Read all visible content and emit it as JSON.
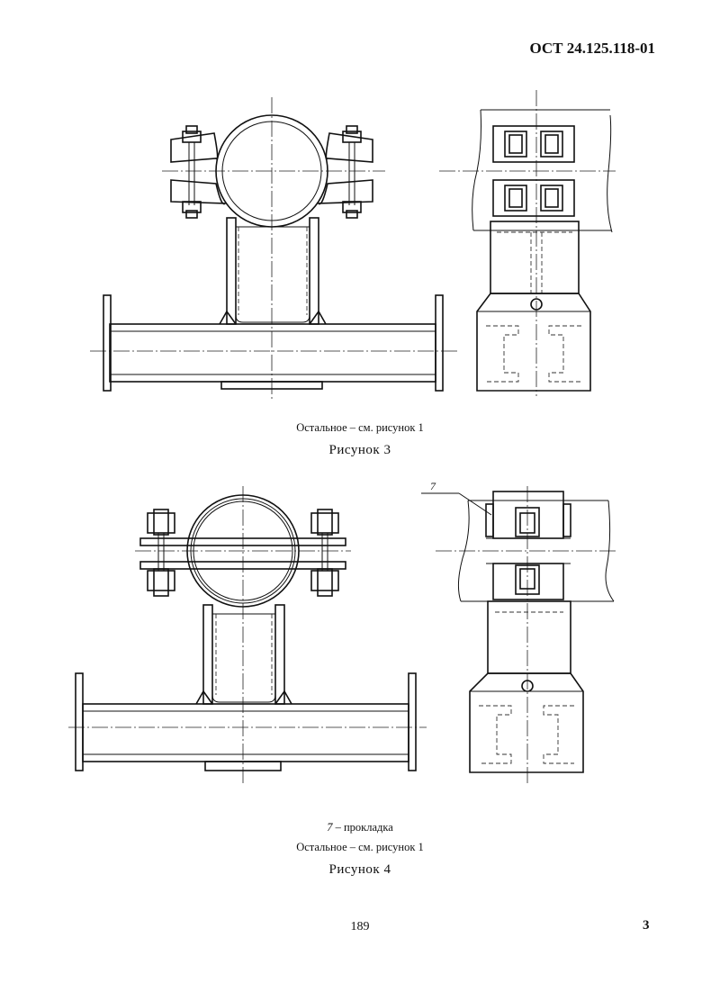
{
  "header": {
    "document_code": "ОСТ 24.125.118-01"
  },
  "figure3": {
    "note": "Остальное – см. рисунок 1",
    "title": "Рисунок 3"
  },
  "figure4": {
    "callout": "7",
    "legend_number": "7",
    "legend_text": "– прокладка",
    "note": "Остальное – см. рисунок 1",
    "title": "Рисунок 4"
  },
  "footer": {
    "page_number": "189",
    "sheet_number": "3"
  }
}
